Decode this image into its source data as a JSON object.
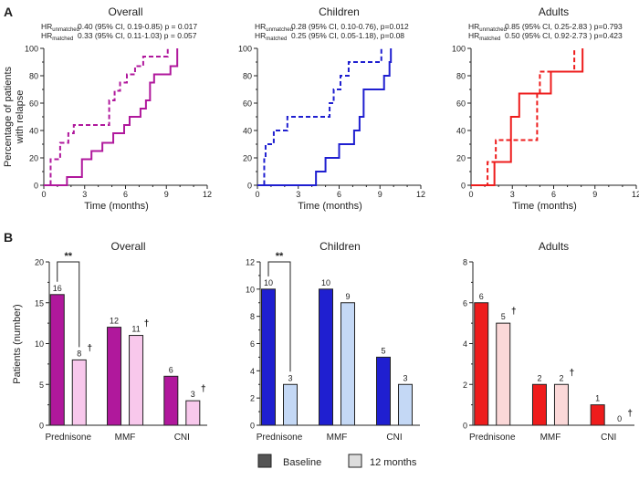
{
  "panel_labels": {
    "a": "A",
    "b": "B"
  },
  "legend": {
    "items": [
      {
        "label": "Baseline",
        "color": "#555555"
      },
      {
        "label": "12 months",
        "color": "#dddddd"
      }
    ]
  },
  "chart_data": [
    {
      "type": "line",
      "step": true,
      "panel": "A",
      "title": "Overall",
      "hr_unmatched": {
        "label": "HR",
        "sub": "unmatched",
        "text": "0.40 (95% CI, 0.19-0.85) p = 0.017"
      },
      "hr_matched": {
        "label": "HR",
        "sub": "matched",
        "text": "0.33 (95% CI, 0.11-1.03) p = 0.057"
      },
      "xlabel": "Time (months)",
      "ylabel": "Percentage of patients with relapse",
      "ylabel_lines": [
        "Percentage of patients",
        "with relapse"
      ],
      "xlim": [
        0,
        12
      ],
      "ylim": [
        0,
        100
      ],
      "xticks": [
        0,
        3,
        6,
        9,
        12
      ],
      "yticks": [
        0,
        20,
        40,
        60,
        80,
        100
      ],
      "color": "#b0189c",
      "series": [
        {
          "style": "solid",
          "points": [
            [
              0,
              0
            ],
            [
              1.7,
              6
            ],
            [
              2.8,
              19
            ],
            [
              3.5,
              25
            ],
            [
              4.3,
              31
            ],
            [
              5.1,
              38
            ],
            [
              5.9,
              44
            ],
            [
              6.3,
              50
            ],
            [
              7.1,
              56
            ],
            [
              7.5,
              62
            ],
            [
              7.8,
              75
            ],
            [
              8.1,
              81
            ],
            [
              9.3,
              87
            ],
            [
              9.8,
              100
            ]
          ]
        },
        {
          "style": "dashed",
          "points": [
            [
              0,
              0
            ],
            [
              0.5,
              19
            ],
            [
              1.2,
              31
            ],
            [
              1.8,
              38
            ],
            [
              2.2,
              44
            ],
            [
              4.8,
              62
            ],
            [
              5.2,
              69
            ],
            [
              5.6,
              75
            ],
            [
              6.1,
              81
            ],
            [
              6.7,
              87
            ],
            [
              7.3,
              94
            ],
            [
              9.1,
              100
            ]
          ]
        }
      ]
    },
    {
      "type": "line",
      "step": true,
      "panel": "A",
      "title": "Children",
      "hr_unmatched": {
        "label": "HR",
        "sub": "unmatched",
        "text": "0.28 (95% CI, 0.10-0.76), p=0.012"
      },
      "hr_matched": {
        "label": "HR",
        "sub": "matched",
        "text": "0.25 (95% CI, 0.05-1.18), p=0.08"
      },
      "xlabel": "Time (months)",
      "xlim": [
        0,
        12
      ],
      "ylim": [
        0,
        100
      ],
      "xticks": [
        0,
        3,
        6,
        9,
        12
      ],
      "yticks": [
        0,
        20,
        40,
        60,
        80,
        100
      ],
      "color": "#1f1fd0",
      "series": [
        {
          "style": "solid",
          "points": [
            [
              0,
              0
            ],
            [
              4.3,
              10
            ],
            [
              5.0,
              20
            ],
            [
              6.0,
              30
            ],
            [
              7.1,
              40
            ],
            [
              7.5,
              50
            ],
            [
              7.8,
              70
            ],
            [
              9.3,
              80
            ],
            [
              9.7,
              90
            ],
            [
              9.8,
              100
            ]
          ]
        },
        {
          "style": "dashed",
          "points": [
            [
              0,
              0
            ],
            [
              0.5,
              20
            ],
            [
              0.6,
              30
            ],
            [
              1.2,
              40
            ],
            [
              2.2,
              50
            ],
            [
              5.3,
              60
            ],
            [
              5.6,
              70
            ],
            [
              6.1,
              80
            ],
            [
              6.7,
              90
            ],
            [
              9.1,
              100
            ]
          ]
        }
      ]
    },
    {
      "type": "line",
      "step": true,
      "panel": "A",
      "title": "Adults",
      "hr_unmatched": {
        "label": "HR",
        "sub": "unmatched",
        "text": "0.85 (95% CI, 0.25-2.83 ) p=0.793"
      },
      "hr_matched": {
        "label": "HR",
        "sub": "matched",
        "text": "0.50 (95% CI, 0.92-2.73 ) p=0.423"
      },
      "xlabel": "Time (months)",
      "xlim": [
        0,
        12
      ],
      "ylim": [
        0,
        100
      ],
      "xticks": [
        0,
        3,
        6,
        9,
        12
      ],
      "yticks": [
        0,
        20,
        40,
        60,
        80,
        100
      ],
      "color": "#ee1c1c",
      "series": [
        {
          "style": "solid",
          "points": [
            [
              0,
              0
            ],
            [
              1.7,
              17
            ],
            [
              2.9,
              50
            ],
            [
              3.5,
              67
            ],
            [
              5.8,
              83
            ],
            [
              8.1,
              100
            ]
          ]
        },
        {
          "style": "dashed",
          "points": [
            [
              0,
              0
            ],
            [
              1.2,
              17
            ],
            [
              1.8,
              33
            ],
            [
              4.8,
              67
            ],
            [
              5.0,
              83
            ],
            [
              7.5,
              100
            ]
          ]
        }
      ]
    },
    {
      "type": "bar",
      "panel": "B",
      "title": "Overall",
      "ylabel": "Patients (number)",
      "ylim": [
        0,
        20
      ],
      "yticks": [
        0,
        5,
        10,
        15,
        20
      ],
      "categories": [
        "Prednisone",
        "MMF",
        "CNI"
      ],
      "colors": [
        "#b0189c",
        "#f8c8ec"
      ],
      "series": [
        {
          "name": "Baseline",
          "values": [
            16,
            12,
            6
          ]
        },
        {
          "name": "12 months",
          "values": [
            8,
            11,
            3
          ]
        }
      ],
      "dagger": [
        true,
        true,
        true
      ],
      "dagger_symbol": "†",
      "significance": {
        "category": "Prednisone",
        "label": "**"
      }
    },
    {
      "type": "bar",
      "panel": "B",
      "title": "Children",
      "ylim": [
        0,
        12
      ],
      "yticks": [
        0,
        2,
        4,
        6,
        8,
        10,
        12
      ],
      "categories": [
        "Prednisone",
        "MMF",
        "CNI"
      ],
      "colors": [
        "#1f1fd0",
        "#c4d8f5"
      ],
      "series": [
        {
          "name": "Baseline",
          "values": [
            10,
            10,
            5
          ]
        },
        {
          "name": "12 months",
          "values": [
            3,
            9,
            3
          ]
        }
      ],
      "dagger": [
        false,
        false,
        false
      ],
      "dagger_symbol": "†",
      "significance": {
        "category": "Prednisone",
        "label": "**"
      }
    },
    {
      "type": "bar",
      "panel": "B",
      "title": "Adults",
      "ylim": [
        0,
        8
      ],
      "yticks": [
        0,
        2,
        4,
        6,
        8
      ],
      "categories": [
        "Prednisone",
        "MMF",
        "CNI"
      ],
      "colors": [
        "#ee1c1c",
        "#fbd8d8"
      ],
      "series": [
        {
          "name": "Baseline",
          "values": [
            6,
            2,
            1
          ]
        },
        {
          "name": "12 months",
          "values": [
            5,
            2,
            0
          ]
        }
      ],
      "dagger": [
        true,
        true,
        true
      ],
      "dagger_symbol": "†"
    }
  ]
}
